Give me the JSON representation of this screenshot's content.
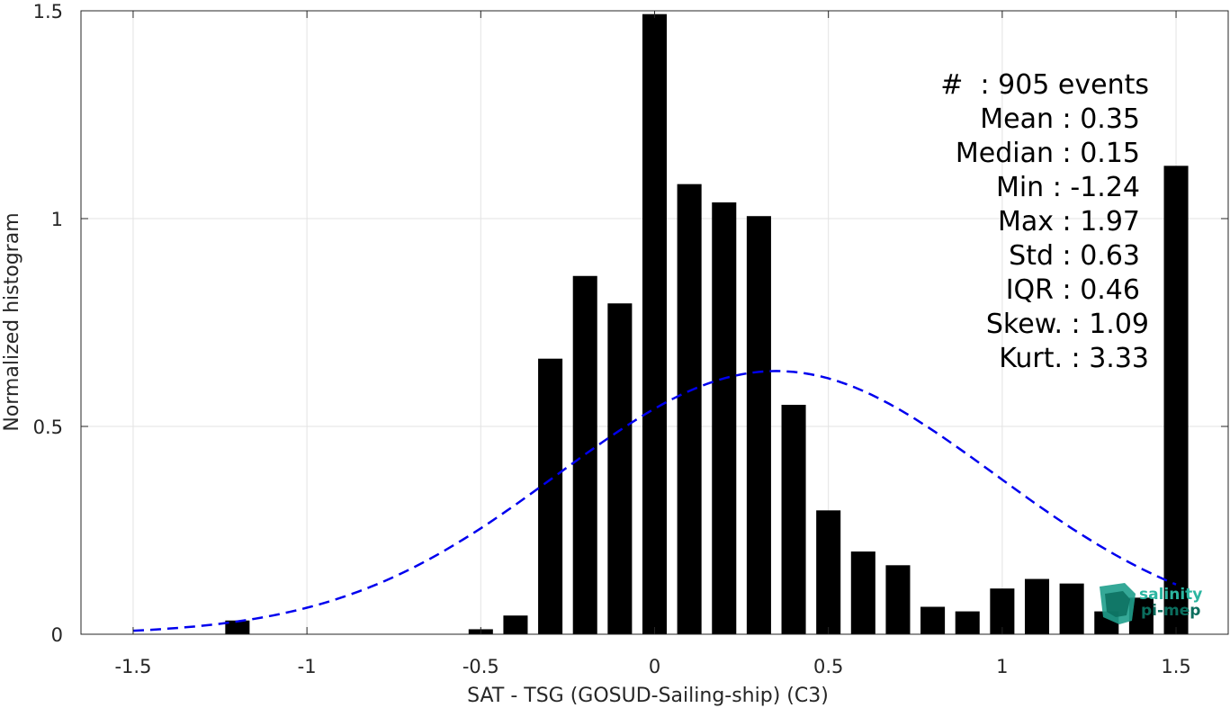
{
  "chart_data": {
    "type": "bar",
    "xlabel": "SAT - TSG (GOSUD-Sailing-ship) (C3)",
    "ylabel": "Normalized histogram",
    "xlim": [
      -1.65,
      1.65
    ],
    "ylim": [
      0,
      1.5
    ],
    "x_ticks": [
      -1.5,
      -1,
      -0.5,
      0,
      0.5,
      1,
      1.5
    ],
    "x_tick_labels": [
      "-1.5",
      "-1",
      "-0.5",
      "0",
      "0.5",
      "1",
      "1.5"
    ],
    "y_ticks": [
      0,
      0.5,
      1,
      1.5
    ],
    "y_tick_labels": [
      "0",
      "0.5",
      "1",
      "1.5"
    ],
    "grid": true,
    "bar_width": 0.07,
    "bar_color": "#000000",
    "bars": [
      {
        "x": -1.2,
        "y": 0.033
      },
      {
        "x": -0.5,
        "y": 0.012
      },
      {
        "x": -0.4,
        "y": 0.045
      },
      {
        "x": -0.3,
        "y": 0.663
      },
      {
        "x": -0.2,
        "y": 0.862
      },
      {
        "x": -0.1,
        "y": 0.796
      },
      {
        "x": 0.0,
        "y": 1.492
      },
      {
        "x": 0.1,
        "y": 1.083
      },
      {
        "x": 0.2,
        "y": 1.039
      },
      {
        "x": 0.3,
        "y": 1.006
      },
      {
        "x": 0.4,
        "y": 0.552
      },
      {
        "x": 0.5,
        "y": 0.298
      },
      {
        "x": 0.6,
        "y": 0.199
      },
      {
        "x": 0.7,
        "y": 0.166
      },
      {
        "x": 0.8,
        "y": 0.066
      },
      {
        "x": 0.9,
        "y": 0.055
      },
      {
        "x": 1.0,
        "y": 0.11
      },
      {
        "x": 1.1,
        "y": 0.133
      },
      {
        "x": 1.2,
        "y": 0.122
      },
      {
        "x": 1.3,
        "y": 0.055
      },
      {
        "x": 1.4,
        "y": 0.088
      },
      {
        "x": 1.5,
        "y": 1.127
      }
    ],
    "fit_curve": {
      "style": "dashed",
      "color": "#0000ee",
      "mean": 0.35,
      "std": 0.63,
      "x_range": [
        -1.5,
        1.5
      ]
    }
  },
  "stats": {
    "lines": [
      "#  : 905 events",
      "Mean : 0.35",
      "Median : 0.15",
      "Min : -1.24",
      "Max : 1.97",
      "Std : 0.63",
      "IQR : 0.46",
      "Skew. : 1.09",
      "Kurt. : 3.33"
    ]
  },
  "logo": {
    "line1": "salinity",
    "line2": "pi-mep",
    "color1": "#2bb5a0",
    "color2": "#0b6e5e"
  }
}
